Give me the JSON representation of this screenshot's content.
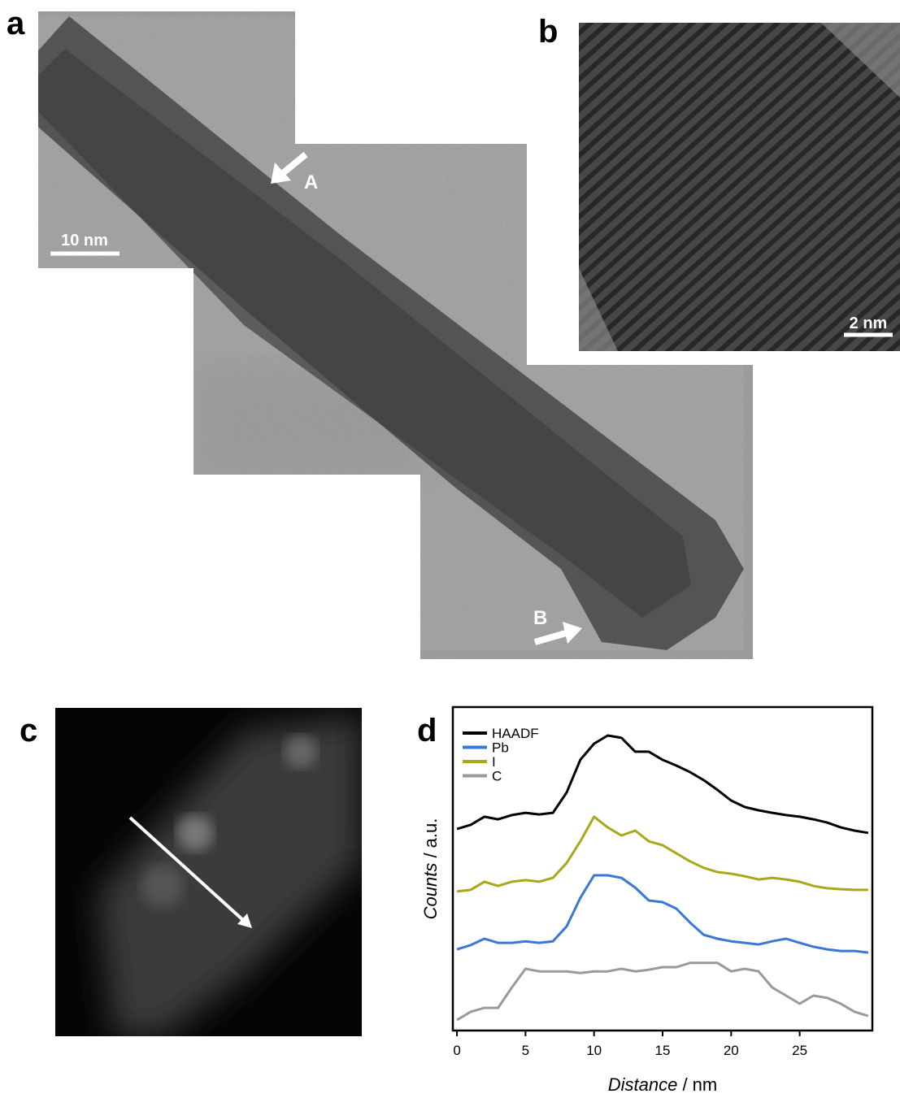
{
  "panels": {
    "a": {
      "label": "a",
      "scale_bar": "10 nm",
      "arrow_1": "A",
      "arrow_2": "B"
    },
    "b": {
      "label": "b",
      "scale_bar": "2 nm"
    },
    "c": {
      "label": "c"
    },
    "d": {
      "label": "d"
    }
  },
  "chart_data": {
    "type": "line",
    "x": [
      0,
      1,
      2,
      3,
      4,
      5,
      6,
      7,
      8,
      9,
      10,
      11,
      12,
      13,
      14,
      15,
      16,
      17,
      18,
      19,
      20,
      21,
      22,
      23,
      24,
      25,
      26,
      27,
      28,
      29,
      30
    ],
    "series": [
      {
        "name": "HAADF",
        "color": "#000000",
        "values": [
          62.3,
          63.6,
          66.1,
          65.3,
          66.6,
          67.3,
          66.8,
          67.3,
          73.6,
          83.7,
          88.7,
          91.2,
          90.5,
          86.2,
          86.2,
          83.7,
          81.9,
          79.9,
          77.4,
          74.4,
          71.1,
          69.1,
          68.1,
          67.3,
          66.6,
          66.1,
          65.3,
          64.3,
          62.8,
          61.8,
          61.1
        ]
      },
      {
        "name": "Pb",
        "color": "#3a78d8",
        "values": [
          25.1,
          26.4,
          28.4,
          27.1,
          27.1,
          27.6,
          27.1,
          27.6,
          32.2,
          41.0,
          48.0,
          48.0,
          47.2,
          44.2,
          40.2,
          39.7,
          37.7,
          33.4,
          29.6,
          28.4,
          27.6,
          27.1,
          26.6,
          27.6,
          28.4,
          27.1,
          25.9,
          25.1,
          24.6,
          24.6,
          24.1
        ]
      },
      {
        "name": "I",
        "color": "#a8a81a",
        "values": [
          43.0,
          43.5,
          46.0,
          44.7,
          46.0,
          46.5,
          46.0,
          47.2,
          51.8,
          58.5,
          66.1,
          62.8,
          60.3,
          61.8,
          58.5,
          57.3,
          54.8,
          52.3,
          50.3,
          49.0,
          48.5,
          47.7,
          46.7,
          47.2,
          46.7,
          46.0,
          44.7,
          44.0,
          43.7,
          43.5,
          43.5
        ]
      },
      {
        "name": "C",
        "color": "#9a9a9a",
        "values": [
          3.3,
          5.8,
          7.0,
          7.0,
          13.3,
          19.1,
          18.3,
          18.3,
          18.3,
          17.8,
          18.3,
          18.3,
          19.1,
          18.3,
          18.8,
          19.6,
          19.6,
          20.9,
          20.9,
          20.9,
          18.3,
          19.1,
          18.3,
          13.3,
          10.8,
          8.3,
          10.8,
          10.1,
          8.3,
          5.8,
          4.5
        ]
      }
    ],
    "xlim": [
      -0.3,
      30.3
    ],
    "ylim": [
      0,
      100
    ],
    "xticks": [
      0,
      5,
      10,
      15,
      20,
      25
    ],
    "x_label": {
      "quantity": "Distance",
      "unit": "/ nm"
    },
    "y_label": {
      "quantity": "Counts",
      "unit": "/ a.u."
    },
    "legend": "upper-left"
  }
}
